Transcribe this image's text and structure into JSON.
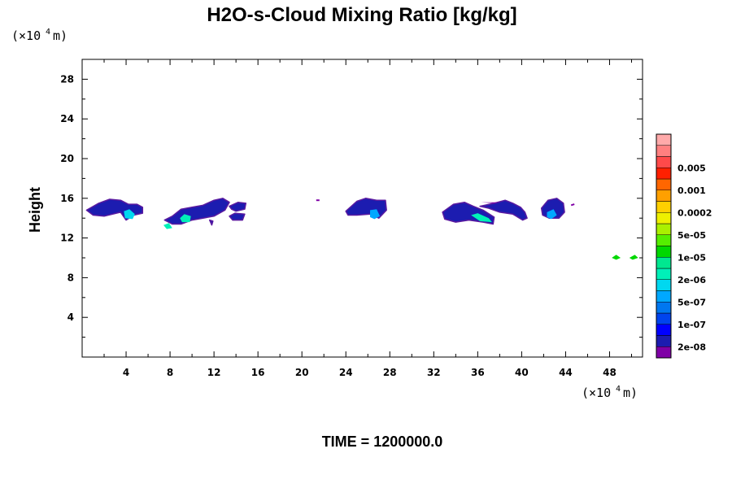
{
  "chart_data": {
    "type": "contour",
    "title": "H2O-s-Cloud Mixing Ratio [kg/kg]",
    "xlabel": "",
    "ylabel": "Height",
    "x_unit": {
      "prefix": "(×10",
      "exp": "4",
      "suffix": " m)"
    },
    "y_unit": {
      "prefix": "(×10",
      "exp": "4",
      "suffix": " m)"
    },
    "xlim": [
      0,
      51
    ],
    "ylim": [
      0,
      30
    ],
    "x_ticks": [
      4,
      8,
      12,
      16,
      20,
      24,
      28,
      32,
      36,
      40,
      44,
      48
    ],
    "y_ticks": [
      4,
      8,
      12,
      16,
      20,
      24,
      28
    ],
    "grid": false,
    "colorbar": {
      "colors": [
        "#7f00a6",
        "#1c1cb0",
        "#0000ff",
        "#0044ee",
        "#0077f0",
        "#00a8ff",
        "#00d8f0",
        "#00f0b8",
        "#00e890",
        "#00d800",
        "#55ee00",
        "#aaf000",
        "#eef000",
        "#ffd000",
        "#ffa000",
        "#ff6600",
        "#ff2000",
        "#ff4a4a",
        "#ff8080",
        "#ffaaaa"
      ],
      "labels": [
        "2e-08",
        "1e-07",
        "5e-07",
        "2e-06",
        "1e-05",
        "5e-05",
        "0.0002",
        "0.001",
        "0.005"
      ]
    },
    "cloud_regions": [
      {
        "x": [
          0.4,
          1.5,
          2.5,
          3.5,
          4.2,
          5.0,
          5.5,
          5.5,
          4.7,
          4.0,
          3.5,
          2.0,
          1.0
        ],
        "y": [
          14.8,
          15.5,
          15.9,
          15.8,
          15.4,
          15.4,
          15.1,
          14.5,
          14.3,
          13.8,
          14.6,
          14.2,
          14.3
        ],
        "level": 1
      },
      {
        "x": [
          3.8,
          4.3,
          4.8,
          4.6,
          3.9
        ],
        "y": [
          14.7,
          14.9,
          14.4,
          13.9,
          14.0
        ],
        "level": 6
      },
      {
        "x": [
          7.5,
          8.2,
          9.0,
          10.0,
          11.0,
          12.0,
          12.8,
          13.4,
          13.0,
          12.0,
          11.0,
          10.0,
          9.0,
          8.2
        ],
        "y": [
          13.8,
          14.2,
          14.9,
          15.1,
          15.3,
          15.8,
          16.0,
          15.6,
          14.8,
          14.2,
          14.0,
          13.8,
          13.4,
          13.4
        ],
        "level": 1
      },
      {
        "x": [
          8.9,
          9.3,
          9.9,
          9.8,
          9.1
        ],
        "y": [
          14.0,
          14.4,
          14.2,
          13.6,
          13.6
        ],
        "level": 7
      },
      {
        "x": [
          7.4,
          7.9,
          8.2,
          7.7
        ],
        "y": [
          13.3,
          13.5,
          13.0,
          12.9
        ],
        "level": 7
      },
      {
        "x": [
          13.4,
          14.2,
          14.9,
          14.8,
          14.0,
          13.6
        ],
        "y": [
          15.2,
          15.6,
          15.5,
          14.9,
          14.7,
          14.9
        ],
        "level": 1
      },
      {
        "x": [
          13.4,
          13.9,
          14.8,
          14.6,
          13.7
        ],
        "y": [
          14.2,
          14.5,
          14.4,
          13.8,
          13.8
        ],
        "level": 1
      },
      {
        "x": [
          11.6,
          11.9,
          11.8
        ],
        "y": [
          13.8,
          13.7,
          13.3
        ],
        "level": 1
      },
      {
        "x": [
          24.0,
          25.0,
          25.8,
          26.8,
          27.6,
          27.7,
          27.0,
          26.2,
          25.0,
          24.2
        ],
        "y": [
          14.7,
          15.7,
          16.0,
          15.8,
          15.8,
          14.8,
          14.0,
          14.4,
          14.3,
          14.3
        ],
        "level": 1
      },
      {
        "x": [
          26.2,
          26.8,
          27.1,
          26.6,
          26.2
        ],
        "y": [
          14.8,
          14.9,
          14.2,
          13.9,
          14.1
        ],
        "level": 5
      },
      {
        "x": [
          21.3,
          21.6
        ],
        "y": [
          15.8,
          15.8
        ],
        "level": 0
      },
      {
        "x": [
          32.8,
          33.8,
          34.8,
          35.6,
          36.5,
          37.5,
          37.4,
          36.5,
          35.2,
          34.0,
          33.0
        ],
        "y": [
          14.6,
          15.4,
          15.6,
          15.2,
          14.8,
          14.1,
          13.4,
          13.6,
          13.8,
          13.6,
          13.9
        ],
        "level": 1
      },
      {
        "x": [
          35.4,
          36.0,
          37.0,
          37.3,
          36.2
        ],
        "y": [
          14.3,
          14.5,
          14.0,
          13.6,
          13.7
        ],
        "level": 7
      },
      {
        "x": [
          36.2,
          37.5,
          38.5,
          39.2,
          39.9,
          40.3,
          40.5,
          40.1,
          39.2,
          38.0,
          37.0
        ],
        "y": [
          15.2,
          15.5,
          15.8,
          15.5,
          15.1,
          14.6,
          14.0,
          13.8,
          14.4,
          14.6,
          15.0
        ],
        "level": 1
      },
      {
        "x": [
          36.3,
          37.5,
          38.0
        ],
        "y": [
          15.6,
          15.5,
          15.6
        ],
        "level": 0
      },
      {
        "x": [
          41.8,
          42.4,
          43.2,
          43.8,
          43.9,
          43.4,
          42.5,
          41.9
        ],
        "y": [
          15.0,
          15.8,
          16.0,
          15.5,
          14.6,
          14.0,
          14.0,
          14.3
        ],
        "level": 1
      },
      {
        "x": [
          42.3,
          42.9,
          43.2,
          42.7,
          42.3
        ],
        "y": [
          14.6,
          14.9,
          14.3,
          13.9,
          14.1
        ],
        "level": 5
      },
      {
        "x": [
          44.5,
          44.8
        ],
        "y": [
          15.3,
          15.4
        ],
        "level": 0
      },
      {
        "x": [
          48.2,
          48.6,
          49.0,
          48.6
        ],
        "y": [
          10.0,
          10.3,
          10.0,
          9.8
        ],
        "level": 9
      },
      {
        "x": [
          49.8,
          50.3,
          50.6,
          50.1
        ],
        "y": [
          10.0,
          10.3,
          10.0,
          9.8
        ],
        "level": 9
      }
    ]
  },
  "footer": {
    "time_label": "TIME = 1200000.0"
  }
}
